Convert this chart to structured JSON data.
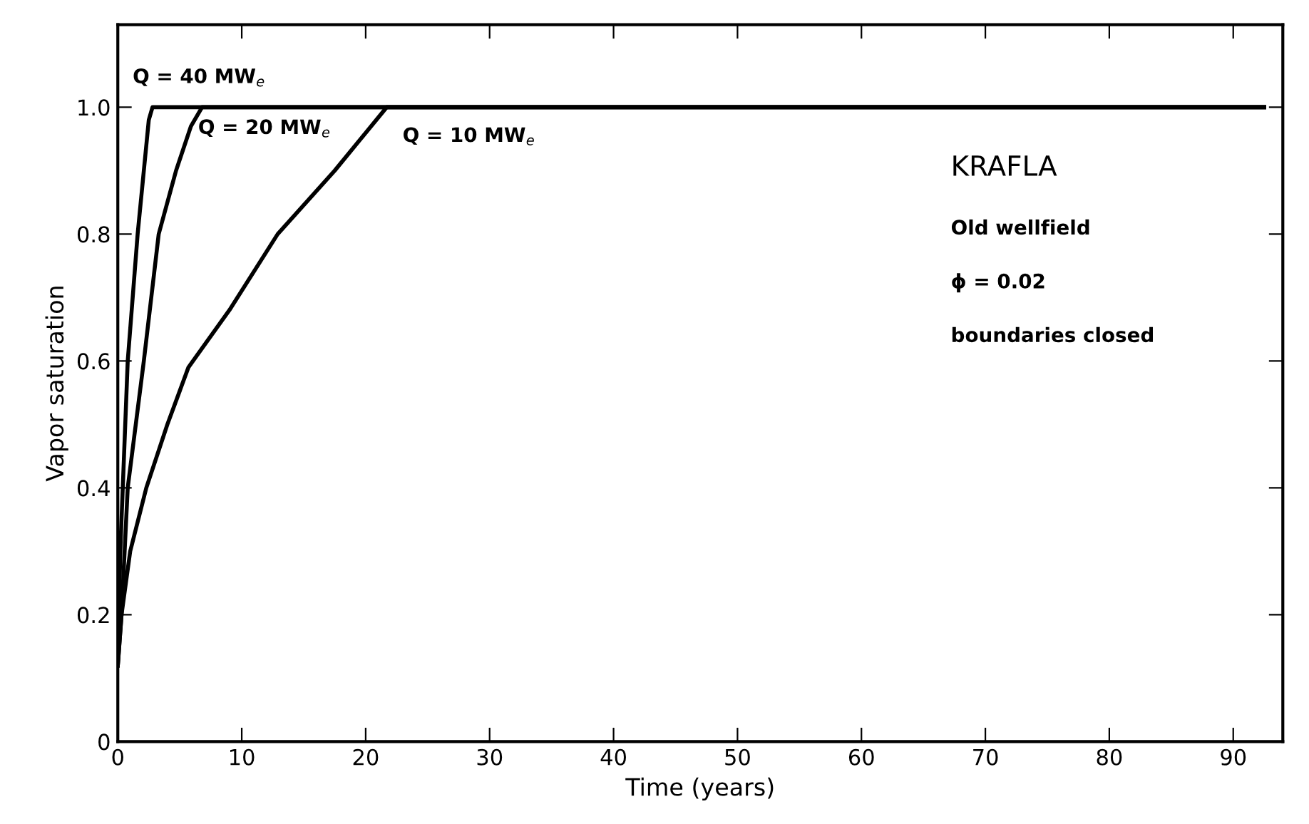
{
  "chart_data": {
    "type": "line",
    "xlabel": "Time (years)",
    "ylabel": "Vapor saturation",
    "xlim": [
      0,
      94
    ],
    "ylim": [
      0,
      1.13
    ],
    "xticks": [
      0,
      10,
      20,
      30,
      40,
      50,
      60,
      70,
      80,
      90
    ],
    "yticks": [
      0,
      {
        "value": 0.2,
        "label": "0.2"
      },
      {
        "value": 0.4,
        "label": "0.4"
      },
      {
        "value": 0.6,
        "label": "0.6"
      },
      {
        "value": 0.8,
        "label": "0.8"
      },
      {
        "value": 1.0,
        "label": "1.0"
      }
    ],
    "grid": false,
    "legend": false,
    "marker": "none",
    "line_style": "solid",
    "series": [
      {
        "name": "Q = 40 MW$_{e}$",
        "color": "#000000",
        "x": [
          0,
          0.2,
          0.8,
          1.6,
          2.5,
          2.8,
          92.5
        ],
        "values": [
          0.12,
          0.3,
          0.6,
          0.8,
          0.98,
          1.0,
          1.0
        ]
      },
      {
        "name": "Q = 20 MW$_{e}$",
        "color": "#000000",
        "x": [
          0,
          0.3,
          0.8,
          2.1,
          3.3,
          4.7,
          5.9,
          6.8,
          92.5
        ],
        "values": [
          0.12,
          0.2,
          0.4,
          0.6,
          0.8,
          0.9,
          0.97,
          1.0,
          1.0
        ]
      },
      {
        "name": "Q = 10 MW$_{e}$",
        "color": "#000000",
        "x": [
          0,
          0.3,
          1.0,
          2.3,
          4.0,
          5.7,
          9.0,
          12.9,
          17.5,
          21.7,
          92.5
        ],
        "values": [
          0.12,
          0.2,
          0.3,
          0.4,
          0.5,
          0.59,
          0.68,
          0.8,
          0.9,
          1.0,
          1.0
        ]
      }
    ],
    "annotations": [
      "KRAFLA",
      "Old wellfield",
      "ϕ = 0.02",
      "boundaries closed"
    ]
  }
}
